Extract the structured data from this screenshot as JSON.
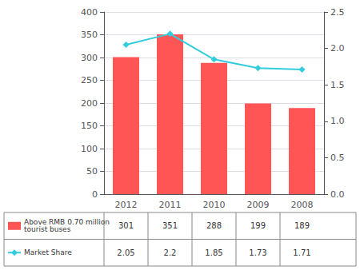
{
  "chart_data": {
    "type": "bar",
    "categories": [
      "2012",
      "2011",
      "2010",
      "2009",
      "2008"
    ],
    "series": [
      {
        "name": "Above RMB 0.70 million\ntourist buses",
        "type": "bar",
        "color": "#FF5555",
        "values": [
          301,
          351,
          288,
          199,
          189
        ]
      },
      {
        "name": "Market Share",
        "type": "line",
        "color": "#33CCDD",
        "marker": "diamond",
        "axis": "y2",
        "values": [
          2.05,
          2.2,
          1.85,
          1.73,
          1.71
        ]
      }
    ],
    "ylim": [
      0,
      400
    ],
    "yticks": [
      0,
      50,
      100,
      150,
      200,
      250,
      300,
      350,
      400
    ],
    "y2lim": [
      0,
      2.5
    ],
    "y2ticks": [
      {
        "value": 0,
        "label": "0.0"
      },
      0.5,
      {
        "value": 1,
        "label": "1.0"
      },
      1.5,
      {
        "value": 2,
        "label": "2.0"
      },
      2.5
    ],
    "grid": true,
    "data_labels": true,
    "legend": "bottom"
  }
}
